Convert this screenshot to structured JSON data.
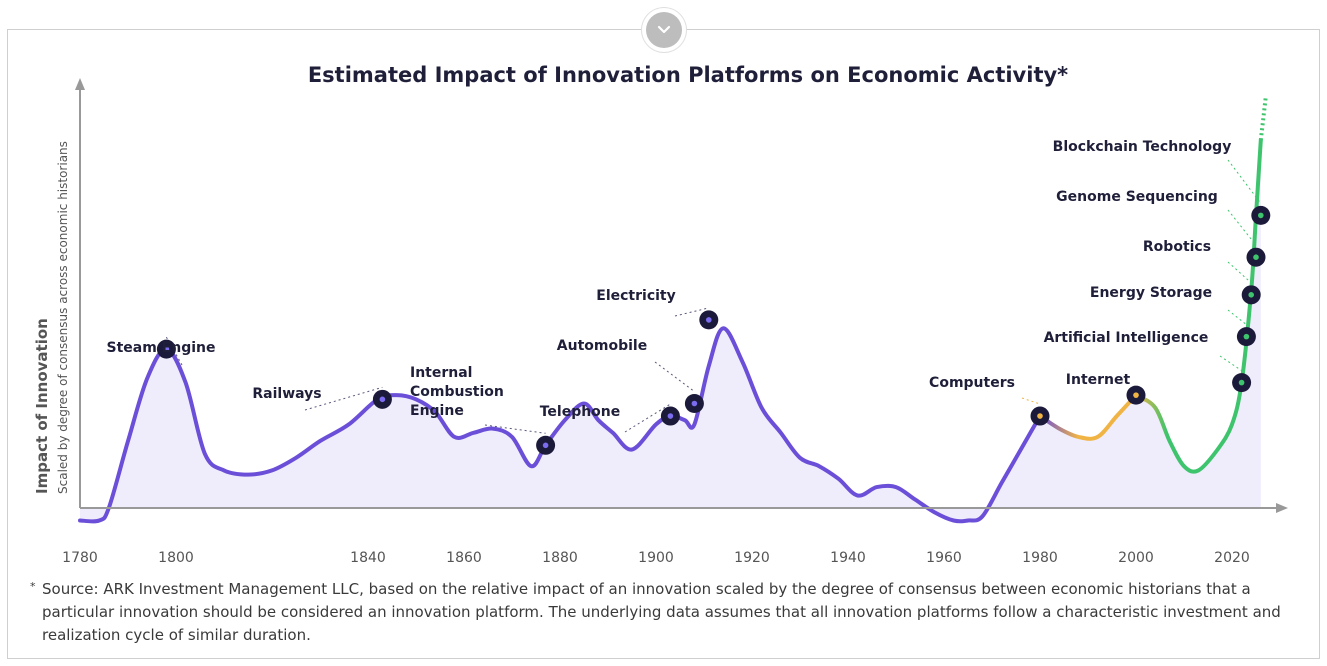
{
  "ui": {
    "collapse_icon": "chevron-down-icon",
    "footnote_mark": "*",
    "footnote": "Source: ARK Investment Management LLC, based on the relative impact of an innovation scaled by the degree of consensus between economic historians that a particular innovation should be considered an innovation platform. The underlying data assumes that all innovation platforms follow a characteristic investment and realization cycle of similar duration."
  },
  "chart_data": {
    "type": "area",
    "title": "Estimated Impact of Innovation Platforms on Economic Activity*",
    "ylabel": "Impact of Innovation",
    "ylabel_sub": "Scaled by degree of consensus across economic historians",
    "xlabel": "",
    "xlim": [
      1780,
      2030
    ],
    "ylim": [
      0,
      100
    ],
    "x_ticks": [
      1780,
      1800,
      1840,
      1860,
      1880,
      1900,
      1920,
      1940,
      1960,
      1980,
      2000,
      2020
    ],
    "grid": false,
    "colors": {
      "historical": "#6b4fd8",
      "fill": "#efedfb",
      "orange": "#f0b445",
      "green": "#3ec46d",
      "marker": "#1c1a3a",
      "marker_dot_purple": "#7b6cf0",
      "marker_dot_orange": "#f0b445",
      "marker_dot_green": "#3ec46d"
    },
    "series": [
      {
        "x": [
          1780,
          1784,
          1786,
          1790,
          1794,
          1798,
          1802,
          1806,
          1810,
          1815,
          1820,
          1825,
          1830,
          1836,
          1842,
          1846,
          1850,
          1854,
          1858,
          1862,
          1866,
          1870,
          1874,
          1877,
          1881,
          1885,
          1888,
          1891,
          1895,
          1900,
          1903,
          1906,
          1908,
          1911,
          1914,
          1918,
          1922,
          1926,
          1930,
          1934,
          1938,
          1942,
          1946,
          1950,
          1954,
          1958,
          1962,
          1965,
          1968,
          1972,
          1976,
          1980
        ],
        "y": [
          -3,
          -3,
          0,
          16,
          31,
          38,
          30,
          13,
          9,
          8,
          9,
          12,
          16,
          20,
          26,
          27,
          26,
          23,
          17,
          18,
          19,
          17,
          10,
          15,
          21,
          25,
          21,
          18,
          14,
          20,
          22,
          21,
          20,
          34,
          43,
          35,
          24,
          18,
          12,
          10,
          7,
          3,
          5,
          5,
          2,
          -1,
          -3,
          -3,
          -2,
          6,
          14,
          22
        ]
      },
      {
        "x": [
          1980,
          1984,
          1988,
          1992,
          1996,
          2000
        ],
        "y": [
          22,
          19,
          17,
          17,
          22,
          27
        ]
      },
      {
        "x": [
          2000,
          2004,
          2007,
          2010,
          2013,
          2017,
          2020,
          2022,
          2024,
          2025,
          2026
        ],
        "y": [
          27,
          24,
          16,
          10,
          9,
          14,
          20,
          30,
          52,
          70,
          88
        ]
      }
    ],
    "projection": {
      "x": [
        2026,
        2027
      ],
      "y": [
        88,
        98
      ]
    },
    "events": [
      {
        "label": "Steam Engine",
        "x": 1798,
        "y": 38,
        "dot": "purple"
      },
      {
        "label": "Railways",
        "x": 1843,
        "y": 26,
        "dot": "purple"
      },
      {
        "label": [
          "Internal",
          "Combustion",
          "Engine"
        ],
        "x": 1877,
        "y": 15,
        "dot": "purple"
      },
      {
        "label": "Telephone",
        "x": 1903,
        "y": 22,
        "dot": "purple"
      },
      {
        "label": "Automobile",
        "x": 1908,
        "y": 25,
        "dot": "purple"
      },
      {
        "label": "Electricity",
        "x": 1911,
        "y": 45,
        "dot": "purple"
      },
      {
        "label": "Computers",
        "x": 1980,
        "y": 22,
        "dot": "orange"
      },
      {
        "label": "Internet",
        "x": 2000,
        "y": 27,
        "dot": "orange"
      },
      {
        "label": "Artificial Intelligence",
        "x": 2022,
        "y": 30,
        "dot": "green"
      },
      {
        "label": "Energy Storage",
        "x": 2023,
        "y": 41,
        "dot": "green"
      },
      {
        "label": "Robotics",
        "x": 2024,
        "y": 51,
        "dot": "green"
      },
      {
        "label": "Genome Sequencing",
        "x": 2025,
        "y": 60,
        "dot": "green"
      },
      {
        "label": "Blockchain Technology",
        "x": 2026,
        "y": 70,
        "dot": "green"
      }
    ]
  }
}
